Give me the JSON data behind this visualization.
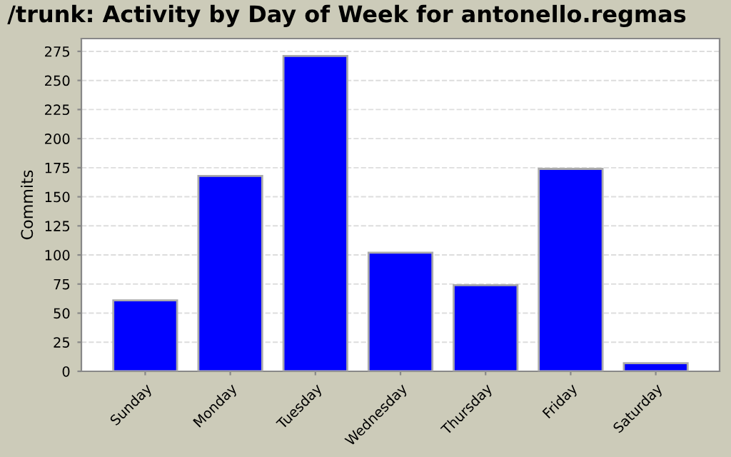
{
  "chart_data": {
    "type": "bar",
    "title": "/trunk: Activity by Day of Week for antonello.regmas",
    "ylabel": "Commits",
    "categories": [
      "Sunday",
      "Monday",
      "Tuesday",
      "Wednesday",
      "Thursday",
      "Friday",
      "Saturday"
    ],
    "values": [
      61,
      168,
      271,
      102,
      74,
      174,
      7
    ],
    "color": "#0000ff",
    "ylim": [
      0,
      286
    ],
    "yticks": [
      0,
      25,
      50,
      75,
      100,
      125,
      150,
      175,
      200,
      225,
      250,
      275
    ],
    "grid": "y",
    "legend": false
  }
}
